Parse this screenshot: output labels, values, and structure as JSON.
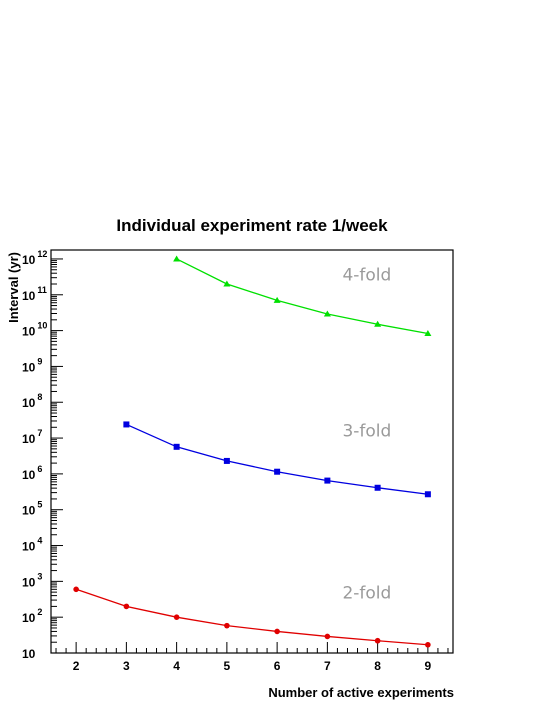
{
  "chart_data": {
    "type": "line",
    "title": "Individual experiment rate 1/week",
    "xlabel": "Number of active experiments",
    "ylabel": "Interval (yr)",
    "xlim": [
      1.5,
      9.5
    ],
    "ylim": [
      10,
      1000000000000
    ],
    "yscale": "log",
    "grid": false,
    "x_ticks": [
      2,
      3,
      4,
      5,
      6,
      7,
      8,
      9
    ],
    "y_ticks": [
      {
        "value": 10,
        "base": "10",
        "exp": ""
      },
      {
        "value": 100,
        "base": "10",
        "exp": "2"
      },
      {
        "value": 1000,
        "base": "10",
        "exp": "3"
      },
      {
        "value": 10000,
        "base": "10",
        "exp": "4"
      },
      {
        "value": 100000,
        "base": "10",
        "exp": "5"
      },
      {
        "value": 1000000,
        "base": "10",
        "exp": "6"
      },
      {
        "value": 10000000,
        "base": "10",
        "exp": "7"
      },
      {
        "value": 100000000,
        "base": "10",
        "exp": "8"
      },
      {
        "value": 1000000000,
        "base": "10",
        "exp": "9"
      },
      {
        "value": 10000000000,
        "base": "10",
        "exp": "10"
      },
      {
        "value": 100000000000,
        "base": "10",
        "exp": "11"
      },
      {
        "value": 1000000000000,
        "base": "10",
        "exp": "12"
      }
    ],
    "series": [
      {
        "label": "4-fold",
        "color": "#00e000",
        "marker": "triangle",
        "x": [
          4,
          5,
          6,
          7,
          8,
          9
        ],
        "values": [
          1000000000000.0,
          200000000000.0,
          70000000000.0,
          29000000000.0,
          15000000000.0,
          8300000000.0
        ],
        "label_at": [
          7.3,
          250000000000.0
        ]
      },
      {
        "label": "3-fold",
        "color": "#0000e0",
        "marker": "square",
        "x": [
          3,
          4,
          5,
          6,
          7,
          8,
          9
        ],
        "values": [
          24000000.0,
          5700000.0,
          2300000.0,
          1150000.0,
          650000.0,
          410000.0,
          270000.0
        ],
        "label_at": [
          7.3,
          11000000.0
        ]
      },
      {
        "label": "2-fold",
        "color": "#e00000",
        "marker": "circle",
        "x": [
          2,
          3,
          4,
          5,
          6,
          7,
          8,
          9
        ],
        "values": [
          600,
          200,
          100,
          58,
          40,
          29,
          22,
          17
        ],
        "label_at": [
          7.3,
          330
        ]
      }
    ]
  }
}
